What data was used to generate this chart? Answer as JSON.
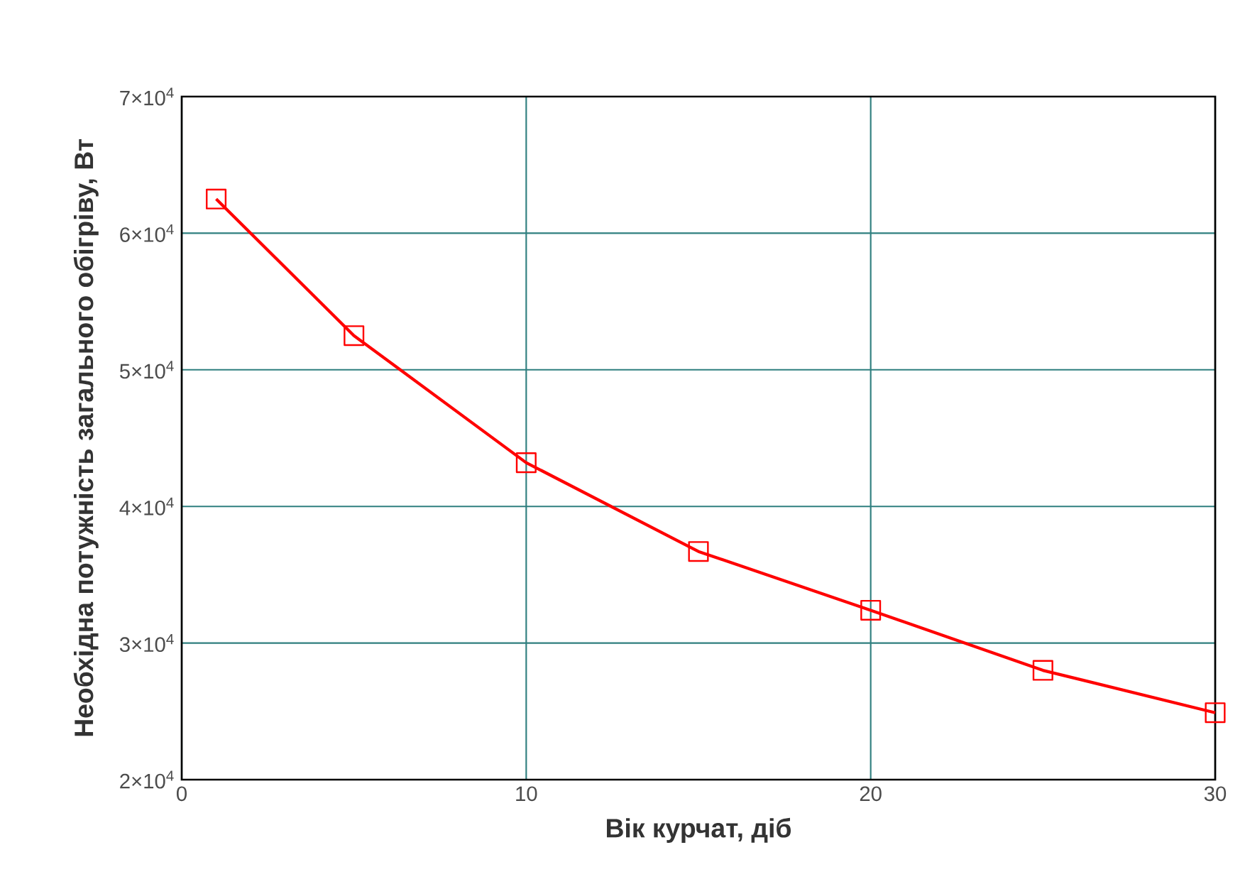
{
  "chart_data": {
    "type": "line",
    "xlabel": "Вік курчат, діб",
    "ylabel": "Необхідна потужність загального обігріву, Вт",
    "x": [
      1,
      5,
      10,
      15,
      20,
      25,
      30
    ],
    "series": [
      {
        "color": "#ff0000",
        "values": [
          62500,
          52500,
          43200,
          36700,
          32400,
          28000,
          24900
        ]
      }
    ],
    "xlim": [
      0,
      30
    ],
    "ylim": [
      20000,
      70000
    ],
    "xticks": [
      0,
      10,
      20,
      30
    ],
    "yticks": [
      {
        "value": 20000,
        "label": "2×10$^{4}$"
      },
      {
        "value": 30000,
        "label": "3×10$^{4}$"
      },
      {
        "value": 40000,
        "label": "4×10$^{4}$"
      },
      {
        "value": 50000,
        "label": "5×10$^{4}$"
      },
      {
        "value": 60000,
        "label": "6×10$^{4}$"
      },
      {
        "value": 70000,
        "label": "7×10$^{4}$"
      }
    ],
    "grid": true,
    "marker": "square",
    "line_style": "solid"
  }
}
